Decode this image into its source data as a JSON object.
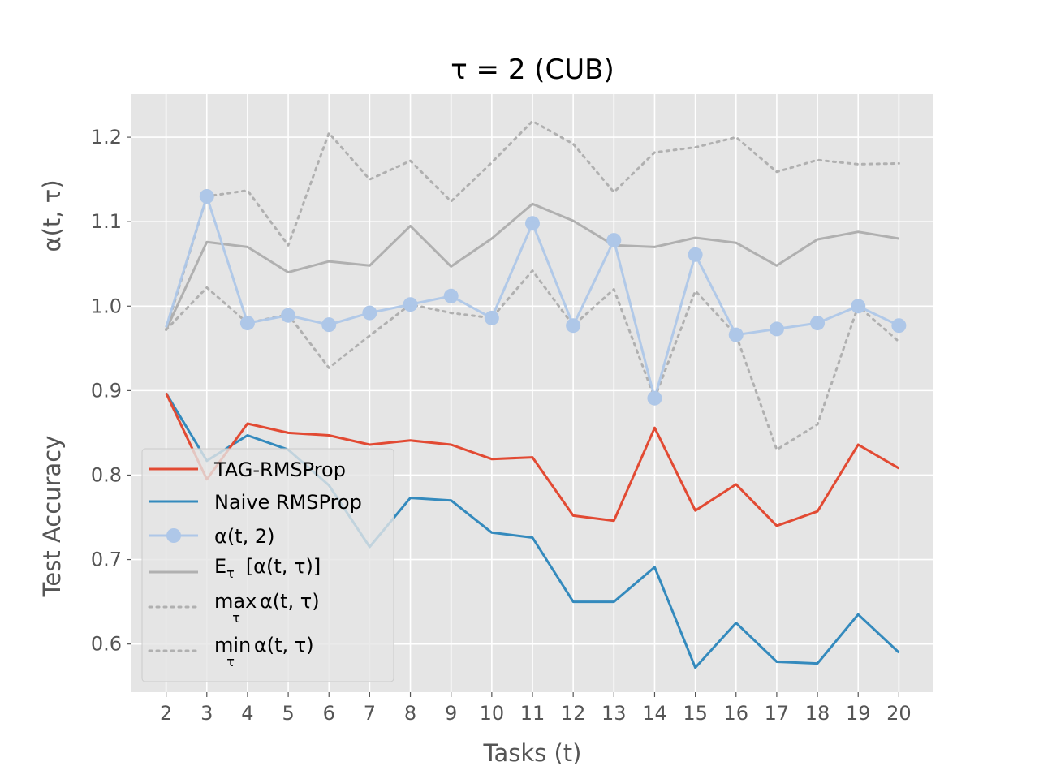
{
  "chart_data": {
    "type": "line",
    "title": "τ = 2 (CUB)",
    "xlabel": "Tasks (t)",
    "ylabel_upper": "α(t, τ)",
    "ylabel_lower": "Test Accuracy",
    "x": [
      2,
      3,
      4,
      5,
      6,
      7,
      8,
      9,
      10,
      11,
      12,
      13,
      14,
      15,
      16,
      17,
      18,
      19,
      20
    ],
    "xlim": [
      1.15,
      20.85
    ],
    "ylim": [
      0.543,
      1.251
    ],
    "yticks": [
      0.6,
      0.7,
      0.8,
      0.9,
      1.0,
      1.1,
      1.2
    ],
    "ytick_labels": [
      "0.6",
      "0.7",
      "0.8",
      "0.9",
      "1.0",
      "1.1",
      "1.2"
    ],
    "grid": true,
    "legend_position": "lower-left",
    "series": [
      {
        "name": "TAG-RMSProp",
        "color": "#E24A33",
        "style": "solid",
        "values": [
          0.897,
          0.795,
          0.861,
          0.85,
          0.847,
          0.836,
          0.841,
          0.836,
          0.819,
          0.821,
          0.752,
          0.746,
          0.856,
          0.758,
          0.789,
          0.74,
          0.757,
          0.836,
          0.808
        ]
      },
      {
        "name": "Naive RMSProp",
        "color": "#348ABD",
        "style": "solid",
        "values": [
          0.897,
          0.817,
          0.847,
          0.83,
          0.788,
          0.715,
          0.773,
          0.77,
          0.732,
          0.726,
          0.65,
          0.65,
          0.691,
          0.572,
          0.625,
          0.579,
          0.577,
          0.635,
          0.59
        ]
      },
      {
        "name": "α(t, 2)",
        "color": "#AEC7E8",
        "style": "solid-marker",
        "values": [
          0.975,
          1.13,
          0.98,
          0.989,
          0.978,
          0.992,
          1.002,
          1.012,
          0.986,
          1.098,
          0.977,
          1.078,
          0.891,
          1.061,
          0.966,
          0.973,
          0.98,
          1.0,
          0.977
        ]
      },
      {
        "name": "E",
        "name_sub": "τ",
        "name_rest": "[α(t, τ)]",
        "color": "#B0B0B0",
        "style": "solid",
        "values": [
          0.972,
          1.076,
          1.07,
          1.04,
          1.053,
          1.048,
          1.095,
          1.047,
          1.08,
          1.121,
          1.101,
          1.072,
          1.07,
          1.081,
          1.075,
          1.048,
          1.079,
          1.088,
          1.08
        ]
      },
      {
        "name": "max",
        "name_sub": "τ",
        "name_rest": "α(t, τ)",
        "color": "#B0B0B0",
        "style": "dotted",
        "values": [
          0.972,
          1.13,
          1.137,
          1.072,
          1.205,
          1.15,
          1.172,
          1.124,
          1.17,
          1.219,
          1.192,
          1.135,
          1.182,
          1.188,
          1.2,
          1.159,
          1.173,
          1.168,
          1.169
        ]
      },
      {
        "name": "min",
        "name_sub": "τ",
        "name_rest": "α(t, τ)",
        "color": "#B0B0B0",
        "style": "dotted",
        "values": [
          0.972,
          1.022,
          0.98,
          0.99,
          0.927,
          0.965,
          1.002,
          0.992,
          0.986,
          1.042,
          0.977,
          1.02,
          0.891,
          1.018,
          0.966,
          0.83,
          0.86,
          1.0,
          0.958
        ]
      }
    ]
  }
}
